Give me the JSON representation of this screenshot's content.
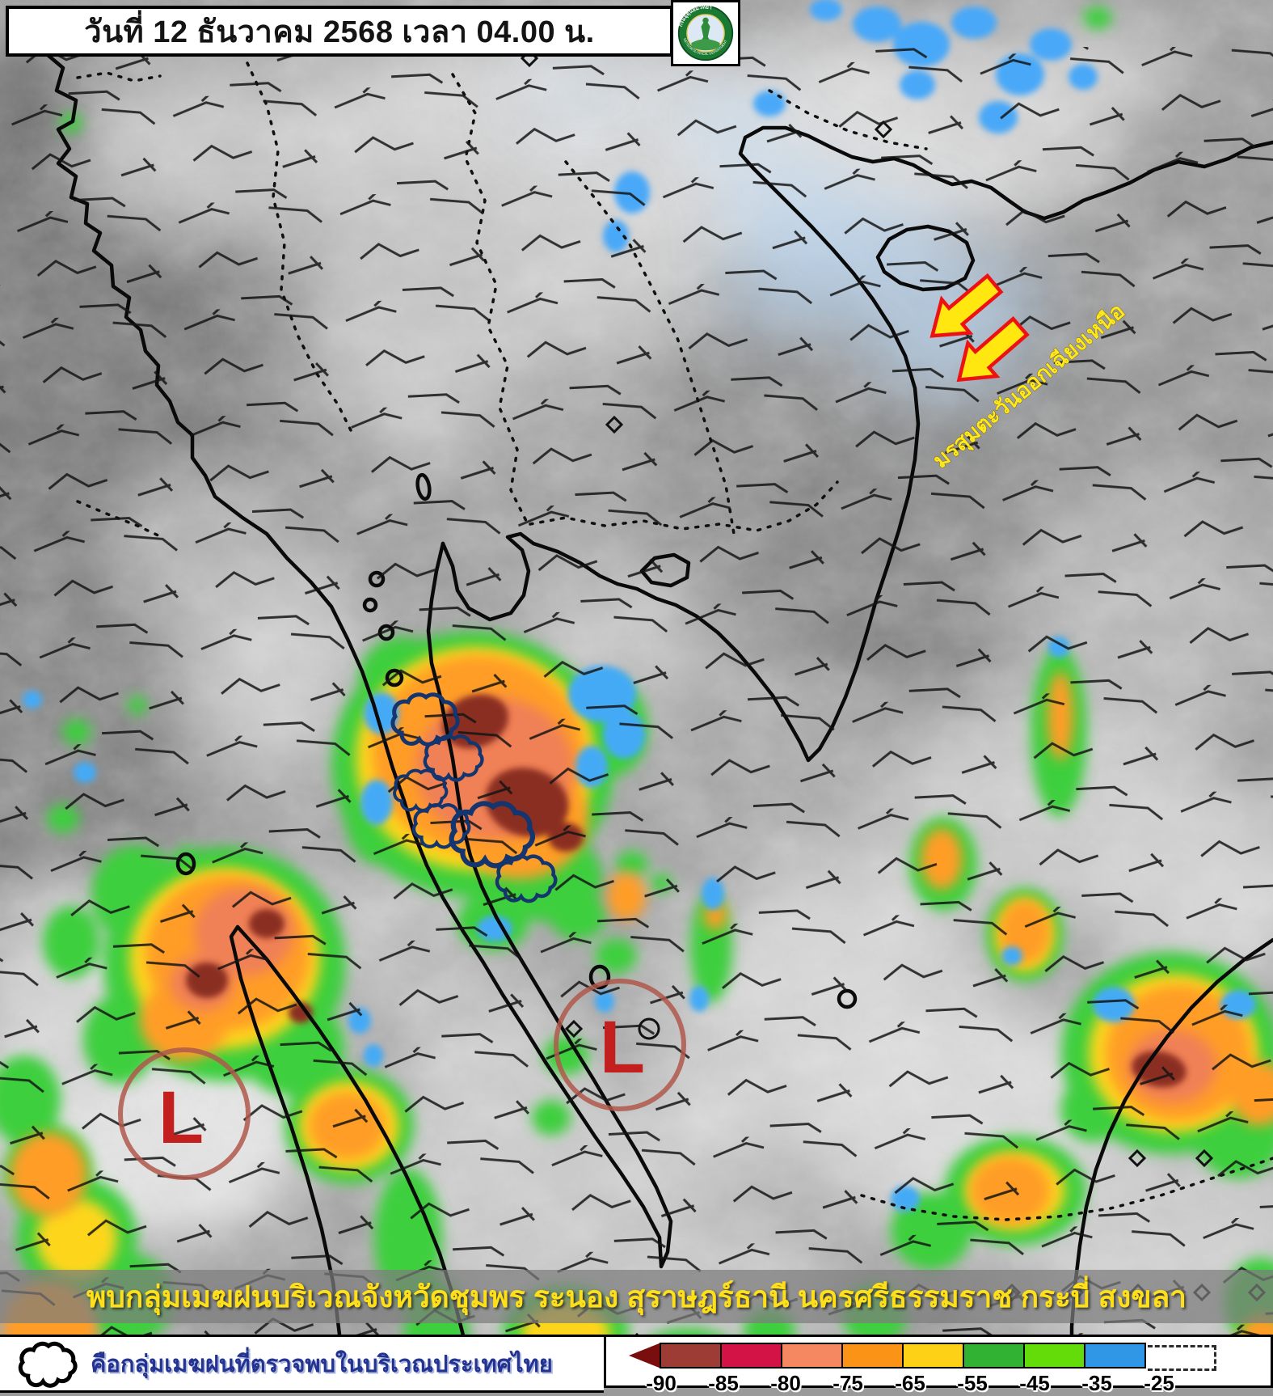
{
  "header": {
    "date_banner": "วันที่ 12 ธันวาคม 2568 เวลา 04.00 น.",
    "logo": {
      "text_top": "กรมอุตุนิยมวิทยา",
      "text_bottom": "METEOROLOGICAL DEPARTMENT"
    }
  },
  "map": {
    "monsoon_label": "มรสุมตะวันออกเฉียงเหนือ",
    "low_marks": [
      {
        "label": "L"
      },
      {
        "label": "L"
      }
    ],
    "colors": {
      "monsoon_text": "#ffe81c",
      "arrow_fill": "#ffe70f",
      "arrow_outline": "#ee1111",
      "low_letter": "#c41f1f",
      "low_circle": "#b0584c",
      "cloud_outline": "#14356e"
    }
  },
  "alert": {
    "text": "พบกลุ่มเมฆฝนบริเวณจังหวัดชุมพร ระนอง สุราษฎร์ธานี นครศรีธรรมราช กระบี่ สงขลา",
    "color": "#ffdf17"
  },
  "legend": {
    "note": "คือกลุ่มเมฆฝนที่ตรวจพบในบริเวณประเทศไทย",
    "note_color": "#24338f",
    "scale": {
      "labels": [
        "-90",
        "-85",
        "-80",
        "-75",
        "-65",
        "-55",
        "-45",
        "-35",
        "-25"
      ],
      "colors": [
        "#9c3c34",
        "#d31245",
        "#f58860",
        "#fb9416",
        "#fdd116",
        "#32b232",
        "#63dc0a",
        "#2f97e5"
      ],
      "arrow_color": "#7a0d0d"
    }
  }
}
